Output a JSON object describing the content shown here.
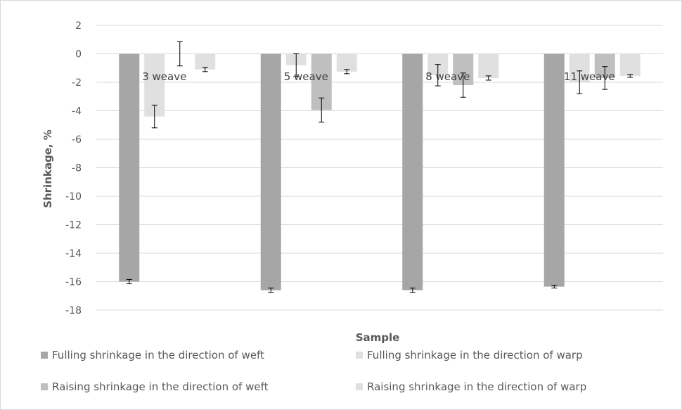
{
  "chart_data": {
    "type": "bar",
    "title": "",
    "xlabel": "Sample",
    "ylabel": "Shrinkage, %",
    "ylim": [
      -18,
      2
    ],
    "yticks": [
      "2",
      "0",
      "-2",
      "-4",
      "-6",
      "-8",
      "-10",
      "-12",
      "-14",
      "-16",
      "-18"
    ],
    "grid": true,
    "legend_position": "bottom",
    "categories": [
      "3 weave",
      "5 weave",
      "8 weave",
      "11 weave"
    ],
    "series": [
      {
        "name": "Fulling shrinkage in the direction of weft",
        "color": "#a6a6a6",
        "values": [
          -16.0,
          -16.6,
          -16.6,
          -16.35
        ],
        "errors": [
          0.15,
          0.15,
          0.15,
          0.1
        ]
      },
      {
        "name": "Fulling shrinkage in the direction of warp",
        "color": "#e0e0e0",
        "values": [
          -4.4,
          -0.8,
          -1.5,
          -2.0
        ],
        "errors": [
          0.8,
          0.8,
          0.75,
          0.8
        ]
      },
      {
        "name": "Raising shrinkage in the direction of weft",
        "color": "#bfbfbf",
        "values": [
          0.0,
          -3.95,
          -2.2,
          -1.7
        ],
        "errors": [
          0.85,
          0.85,
          0.85,
          0.8
        ]
      },
      {
        "name": "Raising shrinkage in the direction of warp",
        "color": "#e0e0e0",
        "values": [
          -1.1,
          -1.25,
          -1.7,
          -1.55
        ],
        "errors": [
          0.15,
          0.15,
          0.15,
          0.1
        ]
      }
    ]
  }
}
